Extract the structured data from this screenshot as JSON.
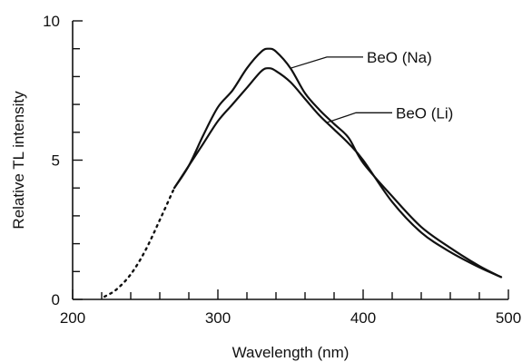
{
  "chart_data": {
    "type": "line",
    "title": "",
    "xlabel": "Wavelength (nm)",
    "ylabel": "Relative TL intensity",
    "xlim": [
      200,
      500
    ],
    "ylim": [
      0,
      10
    ],
    "x_ticks": [
      200,
      300,
      400,
      500
    ],
    "y_ticks": [
      0,
      5,
      10
    ],
    "x_tick_labels": [
      "200",
      "300",
      "400",
      "500"
    ],
    "y_tick_labels": [
      "0",
      "5",
      "10"
    ],
    "x_minor_step": 20,
    "y_minor_step": 1,
    "grid": false,
    "legend": "annotation-labels-with-leader-lines",
    "series": [
      {
        "name": "BeO (Na)",
        "x": [
          270,
          280,
          290,
          300,
          310,
          320,
          330,
          335,
          340,
          350,
          360,
          370,
          380,
          390,
          400,
          420,
          440,
          460,
          480,
          495
        ],
        "y": [
          4.0,
          4.8,
          5.9,
          6.9,
          7.5,
          8.3,
          8.9,
          9.0,
          8.9,
          8.3,
          7.4,
          6.8,
          6.3,
          5.8,
          4.9,
          3.7,
          2.6,
          1.85,
          1.2,
          0.8
        ]
      },
      {
        "name": "BeO (Li)",
        "x": [
          270,
          280,
          290,
          300,
          310,
          320,
          330,
          335,
          340,
          350,
          360,
          370,
          380,
          390,
          400,
          420,
          440,
          460,
          480,
          495
        ],
        "y": [
          4.0,
          4.8,
          5.6,
          6.4,
          7.0,
          7.6,
          8.2,
          8.3,
          8.2,
          7.8,
          7.2,
          6.6,
          6.1,
          5.6,
          5.0,
          3.5,
          2.4,
          1.7,
          1.15,
          0.8
        ]
      }
    ],
    "extrapolated": {
      "style": "dotted",
      "x": [
        222,
        230,
        240,
        250,
        260,
        270
      ],
      "y": [
        0.1,
        0.35,
        0.9,
        1.75,
        2.85,
        4.0
      ]
    },
    "annotations": [
      {
        "text": "BeO (Na)",
        "series": "BeO (Na)",
        "anchor_x": 350,
        "label_x": 375,
        "label_y": 8.7
      },
      {
        "text": "BeO (Li)",
        "series": "BeO (Li)",
        "anchor_x": 375,
        "label_x": 395,
        "label_y": 6.7
      }
    ]
  }
}
